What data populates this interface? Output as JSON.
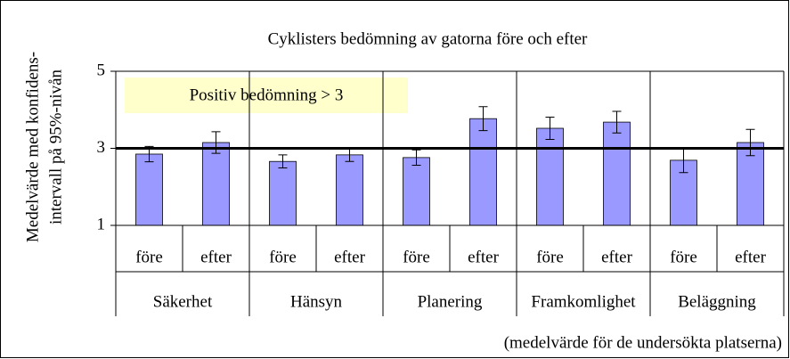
{
  "chart_data": {
    "type": "bar",
    "title": "Cyklisters bedömning av gatorna före och efter",
    "ylabel": [
      "Medelvärde med konfidens-",
      "intervall på 95%-nivån"
    ],
    "annotation": "Positiv bedömning > 3",
    "footnote": "(medelvärde för de undersökta platserna)",
    "groups": [
      "Säkerhet",
      "Hänsyn",
      "Planering",
      "Framkomlighet",
      "Beläggning"
    ],
    "categories": [
      "före",
      "efter",
      "före",
      "efter",
      "före",
      "efter",
      "före",
      "efter",
      "före",
      "efter"
    ],
    "series": [
      {
        "color": "#9999ff",
        "values": [
          2.85,
          3.15,
          2.66,
          2.83,
          2.76,
          3.77,
          3.52,
          3.68,
          2.69,
          3.15
        ],
        "errors": [
          0.2,
          0.28,
          0.17,
          0.17,
          0.2,
          0.31,
          0.29,
          0.28,
          0.32,
          0.34
        ]
      }
    ],
    "reference_line": 3,
    "ylim": [
      1,
      5
    ],
    "yticks": [
      1,
      3,
      5
    ]
  }
}
